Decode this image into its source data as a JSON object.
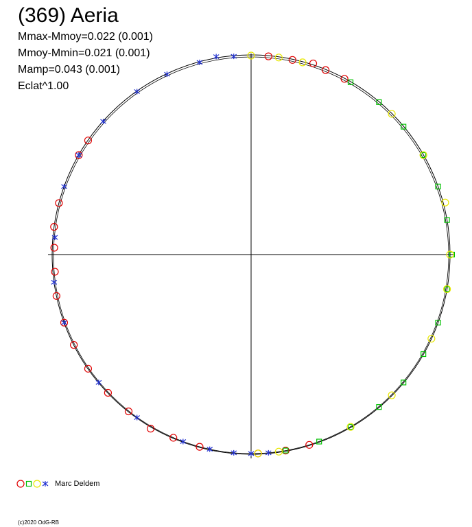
{
  "chart_data": {
    "type": "polar",
    "title": "(369) Aeria",
    "notes": [
      "Mmax-Mmoy=0.022 (0.001)",
      "Mmoy-Mmin=0.021 (0.001)",
      "Mamp=0.043 (0.001)",
      "Eclat^1.00"
    ],
    "legend_label": "Marc Deldem",
    "footer": "(c)2020 OdG-RB",
    "series": [
      {
        "color": "#e00000",
        "marker": "circle",
        "theta": [
          5,
          12,
          18,
          22,
          28,
          163,
          170,
          178,
          195,
          203,
          210,
          218,
          226,
          235,
          243,
          250,
          258,
          265,
          272,
          278,
          285,
          300,
          305
        ],
        "r": [
          1,
          1,
          1.01,
          1,
          1,
          1,
          1,
          1,
          1,
          1,
          1.01,
          1,
          1,
          1,
          1,
          1,
          1,
          0.99,
          0.99,
          1,
          1,
          1,
          1
        ]
      },
      {
        "color": "#00c000",
        "marker": "square",
        "theta": [
          30,
          40,
          50,
          60,
          70,
          80,
          90,
          100,
          110,
          120,
          130,
          140,
          150,
          160,
          170
        ],
        "r": [
          1,
          1,
          1,
          1,
          1,
          1,
          1.01,
          1,
          1,
          1,
          1,
          1,
          1,
          1,
          1
        ]
      },
      {
        "color": "#e8e800",
        "marker": "circle",
        "theta": [
          0,
          8,
          15,
          45,
          60,
          75,
          90,
          100,
          115,
          135,
          150,
          172,
          178
        ],
        "r": [
          1,
          1,
          1,
          1,
          1,
          1.01,
          1,
          1,
          1,
          1,
          1,
          1,
          1
        ]
      },
      {
        "color": "#2030d0",
        "marker": "star",
        "theta": [
          175,
          180,
          185,
          192,
          200,
          215,
          230,
          250,
          262,
          275,
          290,
          300,
          312,
          325,
          335,
          345,
          350,
          355
        ],
        "r": [
          1,
          1,
          1,
          1,
          1,
          1,
          1,
          1,
          1,
          0.99,
          1,
          1,
          1,
          1,
          1,
          1,
          1.01,
          1
        ]
      }
    ]
  }
}
